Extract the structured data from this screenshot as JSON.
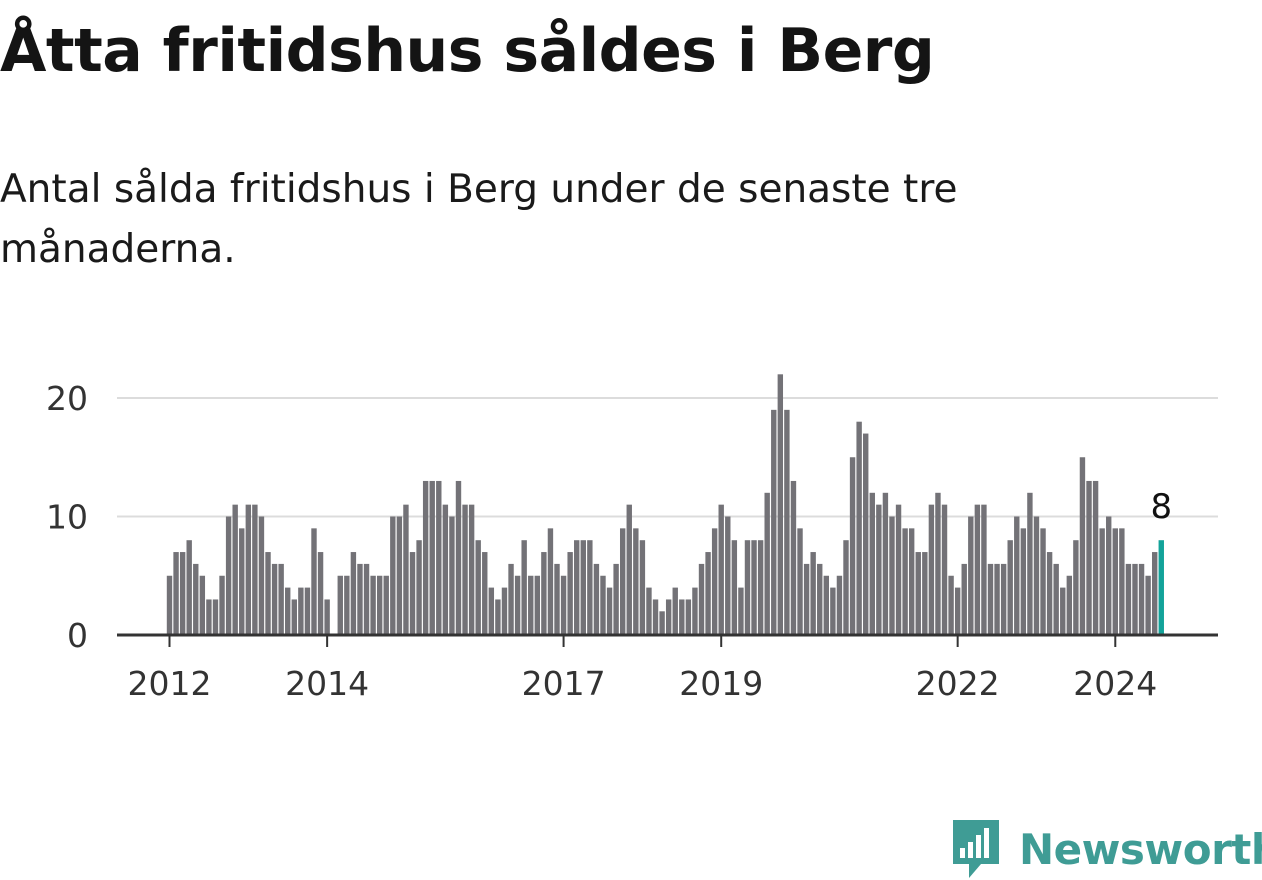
{
  "title": "Åtta fritidshus såldes i Berg",
  "subtitle": "Antal sålda fritidshus i Berg under de senaste tre månaderna.",
  "brand": {
    "name": "Newsworthy",
    "icon": "newsworthy-logo-icon",
    "color": "#3f9c95"
  },
  "colors": {
    "bar": "#737277",
    "highlight": "#13a39a",
    "grid": "#dcdcdc",
    "axis": "#333333"
  },
  "chart_data": {
    "type": "bar",
    "x_start": "2012-01",
    "x_ticks": [
      "2012",
      "2014",
      "2017",
      "2019",
      "2022",
      "2024"
    ],
    "y_ticks": [
      0,
      10,
      20
    ],
    "ylim": [
      0,
      22
    ],
    "grid": true,
    "highlight_label": "8",
    "values": [
      5,
      7,
      7,
      8,
      6,
      5,
      3,
      3,
      5,
      10,
      11,
      9,
      11,
      11,
      10,
      7,
      6,
      6,
      4,
      3,
      4,
      4,
      9,
      7,
      3,
      0,
      5,
      5,
      7,
      6,
      6,
      5,
      5,
      5,
      10,
      10,
      11,
      7,
      8,
      13,
      13,
      13,
      11,
      10,
      13,
      11,
      11,
      8,
      7,
      4,
      3,
      4,
      6,
      5,
      8,
      5,
      5,
      7,
      9,
      6,
      5,
      7,
      8,
      8,
      8,
      6,
      5,
      4,
      6,
      9,
      11,
      9,
      8,
      4,
      3,
      2,
      3,
      4,
      3,
      3,
      4,
      6,
      7,
      9,
      11,
      10,
      8,
      4,
      8,
      8,
      8,
      12,
      19,
      22,
      19,
      13,
      9,
      6,
      7,
      6,
      5,
      4,
      5,
      8,
      15,
      18,
      17,
      12,
      11,
      12,
      10,
      11,
      9,
      9,
      7,
      7,
      11,
      12,
      11,
      5,
      4,
      6,
      10,
      11,
      11,
      6,
      6,
      6,
      8,
      10,
      9,
      12,
      10,
      9,
      7,
      6,
      4,
      5,
      8,
      15,
      13,
      13,
      9,
      10,
      9,
      9,
      6,
      6,
      6,
      5,
      7,
      8
    ]
  }
}
